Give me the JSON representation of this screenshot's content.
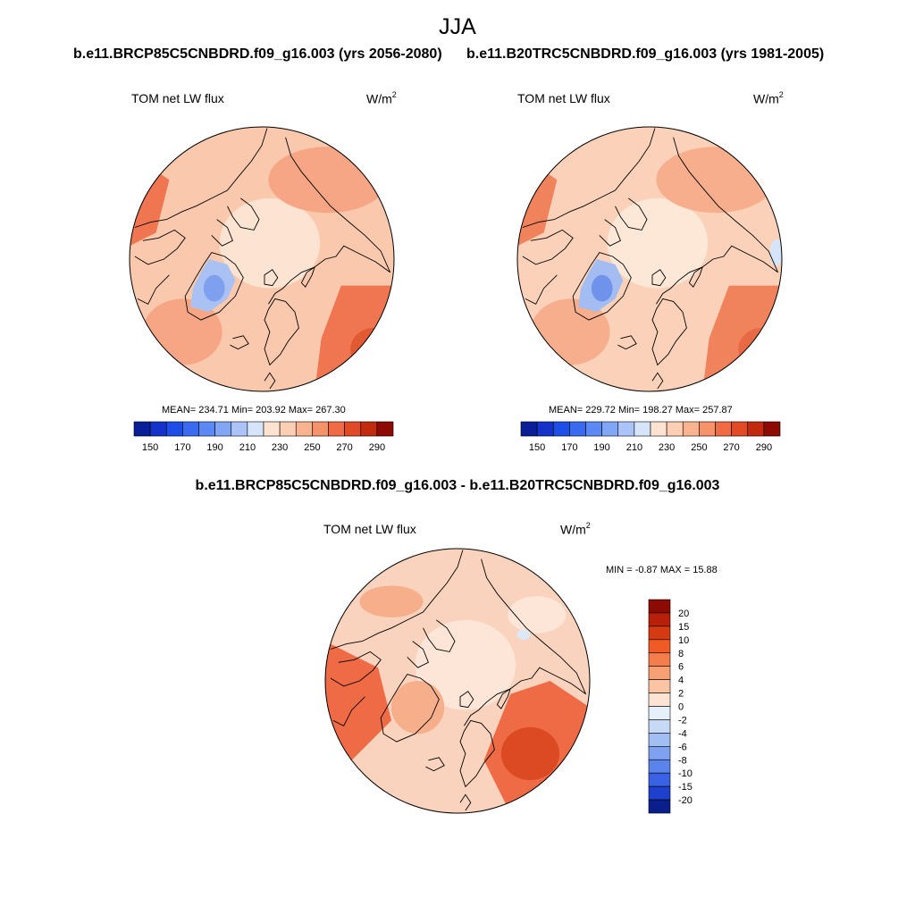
{
  "figure": {
    "season": "JJA",
    "panel_left": {
      "title": "b.e11.BRCP85C5CNBDRD.f09_g16.003 (yrs 2056-2080)",
      "variable": "TOM net LW flux",
      "units_base": "W/m",
      "units_exp": "2",
      "stats": "MEAN= 234.71  Min= 203.92  Max= 267.30"
    },
    "panel_right": {
      "title": "b.e11.B20TRC5CNBDRD.f09_g16.003 (yrs 1981-2005)",
      "variable": "TOM net LW flux",
      "units_base": "W/m",
      "units_exp": "2",
      "stats": "MEAN= 229.72  Min= 198.27  Max= 257.87"
    },
    "panel_diff": {
      "title": "b.e11.BRCP85C5CNBDRD.f09_g16.003 - b.e11.B20TRC5CNBDRD.f09_g16.003",
      "variable": "TOM net LW flux",
      "units_base": "W/m",
      "units_exp": "2",
      "stats": "MIN =  -0.87 MAX =  15.88"
    }
  },
  "chart_data": [
    {
      "type": "heatmap",
      "projection": "north-polar-stereographic",
      "title": "b.e11.BRCP85C5CNBDRD.f09_g16.003 (yrs 2056-2080)",
      "variable": "TOM net LW flux",
      "units": "W/m2",
      "mean": 234.71,
      "min": 203.92,
      "max": 267.3,
      "colorbar": {
        "orientation": "horizontal",
        "levels": [
          150,
          160,
          170,
          180,
          190,
          200,
          210,
          220,
          230,
          240,
          250,
          260,
          270,
          280,
          290
        ],
        "tick_labels": [
          "150",
          "170",
          "190",
          "210",
          "230",
          "250",
          "270",
          "290"
        ],
        "colors": [
          "#0a1e96",
          "#1432c8",
          "#1e4ee6",
          "#3a6af0",
          "#5c88f4",
          "#82a6f6",
          "#aac4f8",
          "#d6e4f9",
          "#fde4d2",
          "#fccfb4",
          "#f9b38f",
          "#f6926b",
          "#ef6b45",
          "#e04a24",
          "#c22a10",
          "#8e0a04"
        ]
      }
    },
    {
      "type": "heatmap",
      "projection": "north-polar-stereographic",
      "title": "b.e11.B20TRC5CNBDRD.f09_g16.003 (yrs 1981-2005)",
      "variable": "TOM net LW flux",
      "units": "W/m2",
      "mean": 229.72,
      "min": 198.27,
      "max": 257.87,
      "colorbar": {
        "orientation": "horizontal",
        "levels": [
          150,
          160,
          170,
          180,
          190,
          200,
          210,
          220,
          230,
          240,
          250,
          260,
          270,
          280,
          290
        ],
        "tick_labels": [
          "150",
          "170",
          "190",
          "210",
          "230",
          "250",
          "270",
          "290"
        ],
        "colors": [
          "#0a1e96",
          "#1432c8",
          "#1e4ee6",
          "#3a6af0",
          "#5c88f4",
          "#82a6f6",
          "#aac4f8",
          "#d6e4f9",
          "#fde4d2",
          "#fccfb4",
          "#f9b38f",
          "#f6926b",
          "#ef6b45",
          "#e04a24",
          "#c22a10",
          "#8e0a04"
        ]
      }
    },
    {
      "type": "heatmap",
      "projection": "north-polar-stereographic",
      "title": "b.e11.BRCP85C5CNBDRD.f09_g16.003 - b.e11.B20TRC5CNBDRD.f09_g16.003",
      "variable": "TOM net LW flux",
      "units": "W/m2",
      "min": -0.87,
      "max": 15.88,
      "colorbar": {
        "orientation": "vertical",
        "levels": [
          "20",
          "15",
          "10",
          "8",
          "6",
          "4",
          "2",
          "0",
          "-2",
          "-4",
          "-6",
          "-8",
          "-10",
          "-15",
          "-20"
        ],
        "colors": [
          "#8e0a04",
          "#b8200a",
          "#d63a12",
          "#f05a24",
          "#f47d4a",
          "#f7a074",
          "#fbc4a2",
          "#fde4d2",
          "#e6f0fa",
          "#c6daf6",
          "#a2bff3",
          "#7ea2f0",
          "#5a84ec",
          "#3a62e4",
          "#1e40cc",
          "#0a1e8c"
        ]
      }
    }
  ]
}
